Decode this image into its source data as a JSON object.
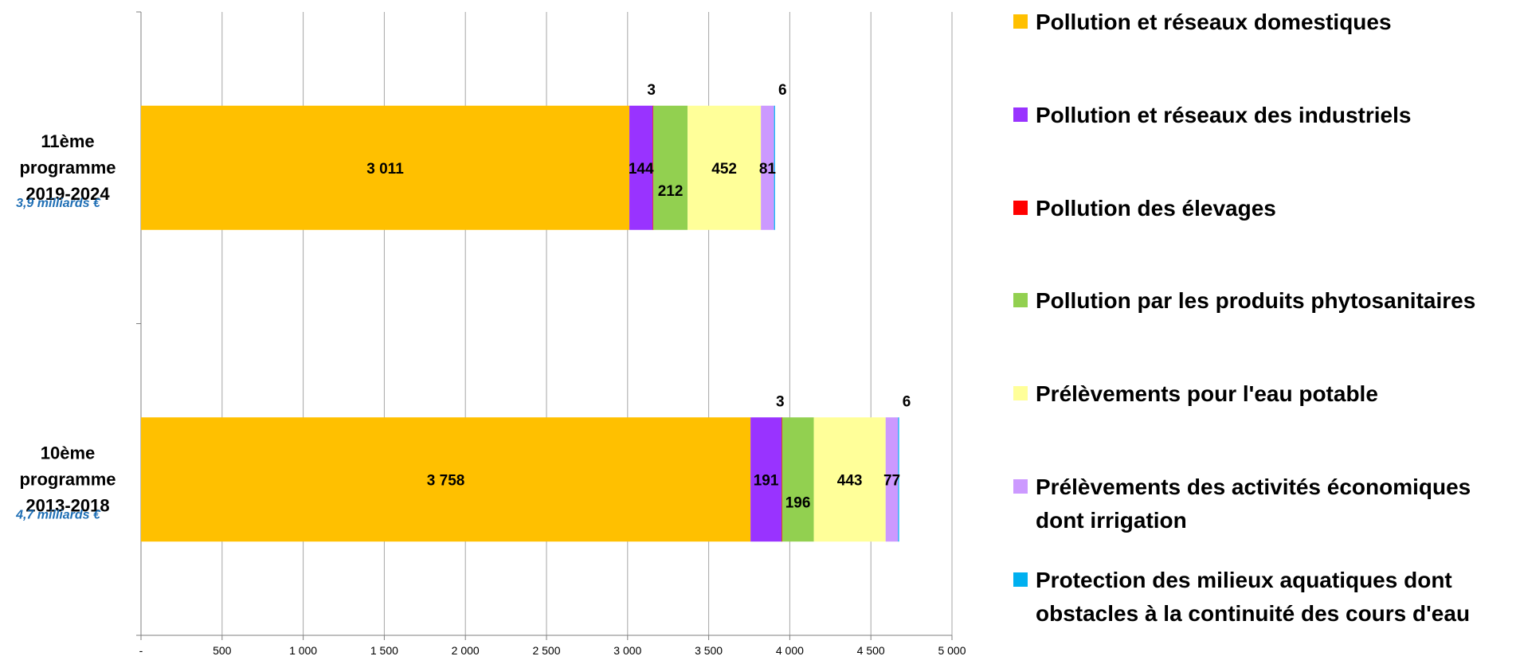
{
  "chart_data": {
    "type": "bar",
    "orientation": "horizontal",
    "stacked": true,
    "xlim": [
      0,
      5000
    ],
    "xticks": [
      0,
      500,
      1000,
      1500,
      2000,
      2500,
      3000,
      3500,
      4000,
      4500,
      5000
    ],
    "xtick_labels": [
      "-",
      "500",
      "1 000",
      "1 500",
      "2 000",
      "2 500",
      "3 000",
      "3 500",
      "4 000",
      "4 500",
      "5 000"
    ],
    "grid": true,
    "legend_position": "right",
    "categories": [
      {
        "label_lines": [
          "11ème",
          "programme",
          "2019-2024"
        ],
        "note": "3,9 milliards €"
      },
      {
        "label_lines": [
          "10ème",
          "programme",
          "2013-2018"
        ],
        "note": "4,7 milliards €"
      }
    ],
    "series": [
      {
        "name_lines": [
          "Pollution et réseaux domestiques"
        ],
        "color": "#FFC000",
        "values": [
          3011,
          3758
        ],
        "labels": [
          "3 011",
          "3 758"
        ]
      },
      {
        "name_lines": [
          "Pollution et réseaux des industriels"
        ],
        "color": "#9933FF",
        "values": [
          144,
          191
        ],
        "labels": [
          "144",
          "191"
        ]
      },
      {
        "name_lines": [
          "Pollution des élevages"
        ],
        "color": "#FF0000",
        "values": [
          3,
          3
        ],
        "labels": [
          "3",
          "3"
        ]
      },
      {
        "name_lines": [
          "Pollution par les produits phytosanitaires"
        ],
        "color": "#92D050",
        "values": [
          212,
          196
        ],
        "labels": [
          "212",
          "196"
        ]
      },
      {
        "name_lines": [
          "Prélèvements pour l'eau potable"
        ],
        "color": "#FFFF99",
        "values": [
          452,
          443
        ],
        "labels": [
          "452",
          "443"
        ]
      },
      {
        "name_lines": [
          "Prélèvements des activités économiques",
          "dont irrigation"
        ],
        "color": "#CC99FF",
        "values": [
          81,
          77
        ],
        "labels": [
          "81",
          "77"
        ]
      },
      {
        "name_lines": [
          "Protection des milieux aquatiques dont",
          "obstacles à la continuité des cours d'eau"
        ],
        "color": "#00B0F0",
        "values": [
          6,
          6
        ],
        "labels": [
          "6",
          "6"
        ]
      }
    ]
  }
}
